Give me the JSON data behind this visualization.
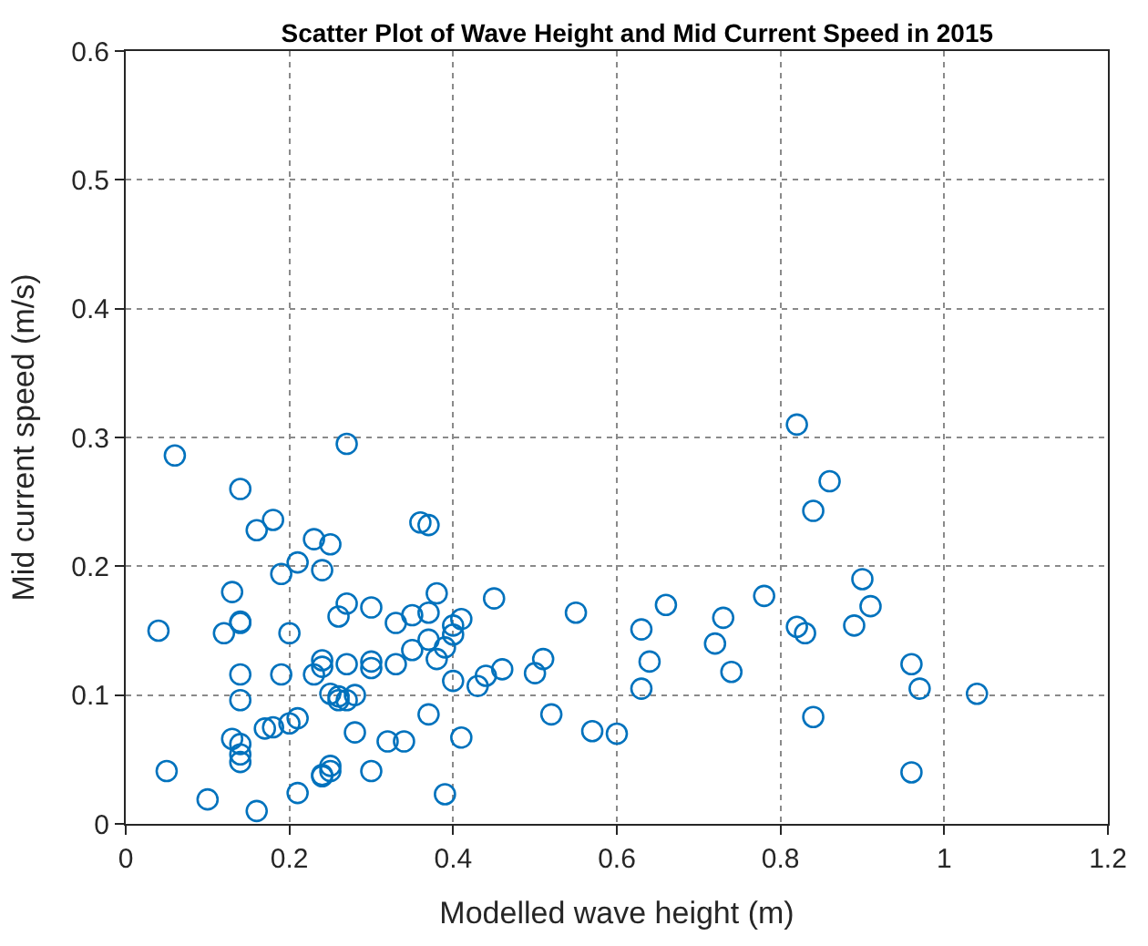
{
  "chart_data": {
    "type": "scatter",
    "title": "Scatter Plot of Wave Height and Mid Current Speed in 2015",
    "xlabel": "Modelled wave height (m)",
    "ylabel": "Mid current speed (m/s)",
    "x": [
      0.04,
      0.05,
      0.06,
      0.1,
      0.12,
      0.13,
      0.13,
      0.14,
      0.14,
      0.14,
      0.14,
      0.14,
      0.14,
      0.14,
      0.14,
      0.16,
      0.16,
      0.17,
      0.18,
      0.18,
      0.19,
      0.19,
      0.2,
      0.2,
      0.21,
      0.21,
      0.21,
      0.23,
      0.23,
      0.24,
      0.24,
      0.24,
      0.24,
      0.24,
      0.25,
      0.25,
      0.25,
      0.25,
      0.26,
      0.26,
      0.26,
      0.27,
      0.27,
      0.27,
      0.27,
      0.28,
      0.28,
      0.3,
      0.3,
      0.3,
      0.3,
      0.32,
      0.33,
      0.33,
      0.34,
      0.35,
      0.35,
      0.36,
      0.37,
      0.37,
      0.37,
      0.37,
      0.38,
      0.38,
      0.39,
      0.39,
      0.4,
      0.4,
      0.4,
      0.41,
      0.41,
      0.43,
      0.44,
      0.45,
      0.46,
      0.5,
      0.51,
      0.52,
      0.55,
      0.57,
      0.6,
      0.63,
      0.63,
      0.64,
      0.66,
      0.72,
      0.73,
      0.74,
      0.78,
      0.82,
      0.82,
      0.83,
      0.84,
      0.84,
      0.86,
      0.89,
      0.9,
      0.91,
      0.96,
      0.96,
      0.97,
      1.04
    ],
    "values": [
      0.15,
      0.041,
      0.286,
      0.019,
      0.148,
      0.18,
      0.066,
      0.26,
      0.157,
      0.156,
      0.116,
      0.096,
      0.062,
      0.054,
      0.048,
      0.228,
      0.01,
      0.074,
      0.236,
      0.075,
      0.194,
      0.116,
      0.148,
      0.078,
      0.203,
      0.082,
      0.024,
      0.221,
      0.116,
      0.197,
      0.127,
      0.122,
      0.037,
      0.038,
      0.217,
      0.101,
      0.045,
      0.041,
      0.161,
      0.099,
      0.096,
      0.295,
      0.171,
      0.124,
      0.096,
      0.1,
      0.071,
      0.168,
      0.126,
      0.121,
      0.041,
      0.064,
      0.156,
      0.124,
      0.064,
      0.162,
      0.135,
      0.234,
      0.232,
      0.164,
      0.143,
      0.085,
      0.179,
      0.128,
      0.137,
      0.023,
      0.154,
      0.147,
      0.111,
      0.159,
      0.067,
      0.107,
      0.115,
      0.175,
      0.12,
      0.117,
      0.128,
      0.085,
      0.164,
      0.072,
      0.07,
      0.151,
      0.105,
      0.126,
      0.17,
      0.14,
      0.16,
      0.118,
      0.177,
      0.31,
      0.153,
      0.148,
      0.243,
      0.083,
      0.266,
      0.154,
      0.19,
      0.169,
      0.124,
      0.04,
      0.105,
      0.101
    ],
    "color": "#0072bd",
    "marker": "circle",
    "grid": true,
    "xlim": [
      0,
      1.2
    ],
    "xticks": [
      0,
      0.2,
      0.4,
      0.6,
      0.8,
      1,
      1.2
    ],
    "ylim": [
      0,
      0.6
    ],
    "yticks": [
      0,
      0.1,
      0.2,
      0.3,
      0.4,
      0.5,
      0.6
    ]
  }
}
